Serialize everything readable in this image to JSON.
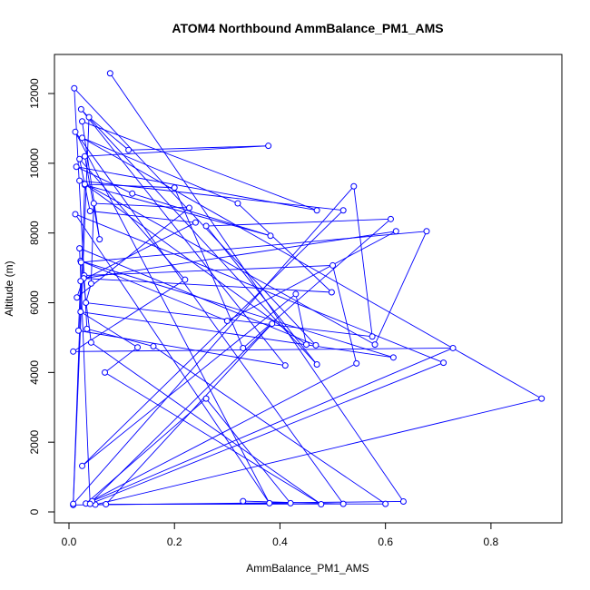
{
  "chart_data": {
    "type": "scatter",
    "title": "ATOM4 Northbound AmmBalance_PM1_AMS",
    "xlabel": "AmmBalance_PM1_AMS",
    "ylabel": "Altitude (m)",
    "xlim": [
      0.0,
      0.9
    ],
    "ylim": [
      0,
      12600
    ],
    "x_ticks": [
      "0.0",
      "0.2",
      "0.4",
      "0.6",
      "0.8"
    ],
    "y_ticks": [
      "0",
      "2000",
      "4000",
      "6000",
      "8000",
      "10000",
      "12000"
    ],
    "series": [
      {
        "color": "#0000ff",
        "marker": "open-circle",
        "connected": true,
        "points": [
          [
            0.078,
            12580
          ],
          [
            0.634,
            300
          ],
          [
            0.008,
            200
          ],
          [
            0.038,
            11320
          ],
          [
            0.113,
            10380
          ],
          [
            0.378,
            10500
          ],
          [
            0.03,
            10200
          ],
          [
            0.058,
            7820
          ],
          [
            0.025,
            11200
          ],
          [
            0.47,
            8650
          ],
          [
            0.014,
            9900
          ],
          [
            0.12,
            9130
          ],
          [
            0.382,
            7920
          ],
          [
            0.03,
            9380
          ],
          [
            0.008,
            230
          ],
          [
            0.54,
            9340
          ],
          [
            0.575,
            5030
          ],
          [
            0.032,
            6000
          ],
          [
            0.042,
            6550
          ],
          [
            0.047,
            8850
          ],
          [
            0.228,
            8720
          ],
          [
            0.015,
            6150
          ],
          [
            0.029,
            6780
          ],
          [
            0.5,
            7070
          ],
          [
            0.545,
            4260
          ],
          [
            0.032,
            240
          ],
          [
            0.26,
            3250
          ],
          [
            0.42,
            250
          ],
          [
            0.05,
            210
          ],
          [
            0.896,
            3250
          ],
          [
            0.025,
            10730
          ],
          [
            0.32,
            8850
          ],
          [
            0.498,
            6300
          ],
          [
            0.028,
            6700
          ],
          [
            0.62,
            8050
          ],
          [
            0.3,
            5480
          ],
          [
            0.022,
            7200
          ],
          [
            0.615,
            4430
          ],
          [
            0.022,
            5740
          ],
          [
            0.13,
            4720
          ],
          [
            0.068,
            4000
          ],
          [
            0.478,
            220
          ],
          [
            0.042,
            4860
          ],
          [
            0.023,
            7160
          ],
          [
            0.678,
            8050
          ],
          [
            0.58,
            4800
          ],
          [
            0.02,
            9500
          ],
          [
            0.52,
            8650
          ],
          [
            0.025,
            1320
          ],
          [
            0.43,
            6250
          ],
          [
            0.45,
            4800
          ],
          [
            0.03,
            9400
          ],
          [
            0.2,
            9300
          ],
          [
            0.33,
            4700
          ],
          [
            0.61,
            8400
          ],
          [
            0.26,
            8200
          ],
          [
            0.47,
            4230
          ],
          [
            0.023,
            11550
          ],
          [
            0.41,
            4200
          ],
          [
            0.018,
            5200
          ],
          [
            0.022,
            6620
          ],
          [
            0.24,
            8300
          ],
          [
            0.04,
            8630
          ],
          [
            0.02,
            10120
          ],
          [
            0.22,
            6660
          ],
          [
            0.008,
            4600
          ],
          [
            0.728,
            4700
          ],
          [
            0.044,
            310
          ],
          [
            0.385,
            5400
          ],
          [
            0.07,
            220
          ],
          [
            0.6,
            230
          ],
          [
            0.16,
            4750
          ],
          [
            0.034,
            5250
          ],
          [
            0.01,
            12150
          ],
          [
            0.468,
            4780
          ],
          [
            0.02,
            7560
          ],
          [
            0.04,
            230
          ],
          [
            0.71,
            4280
          ],
          [
            0.012,
            8540
          ],
          [
            0.38,
            250
          ],
          [
            0.012,
            10900
          ],
          [
            0.52,
            230
          ],
          [
            0.33,
            310
          ]
        ]
      }
    ]
  }
}
